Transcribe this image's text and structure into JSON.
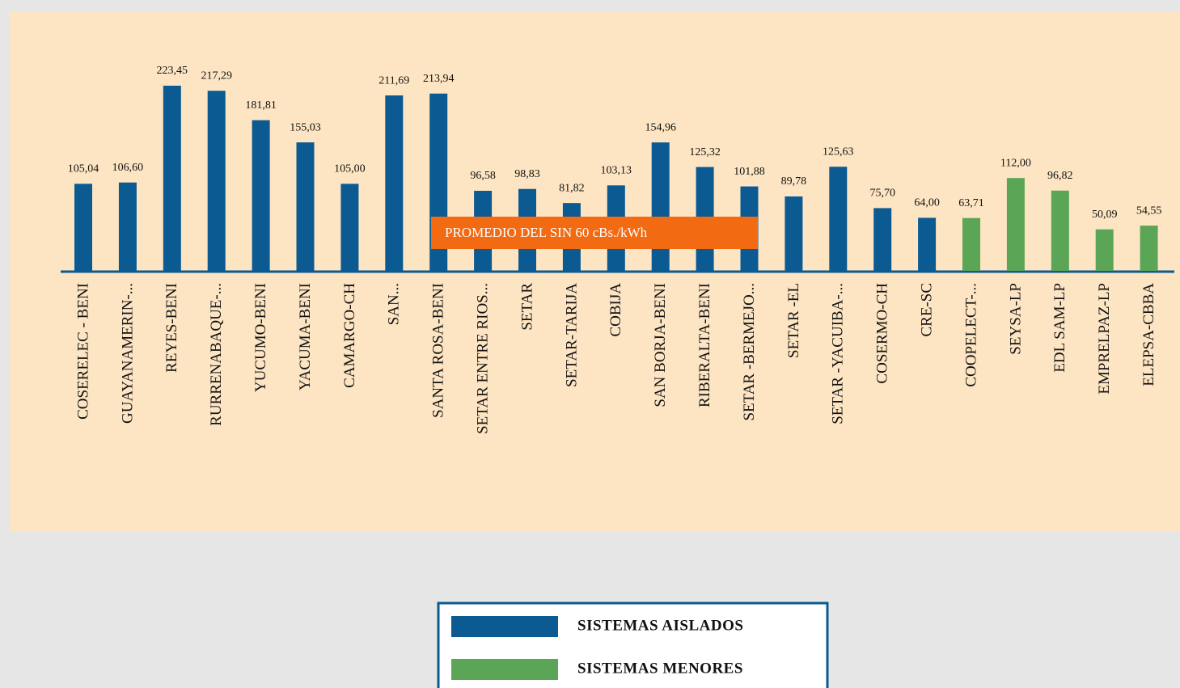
{
  "chart_data": {
    "type": "bar",
    "categories": [
      "COSERELEC - BENI",
      "GUAYANAMERIN-...",
      "REYES-BENI",
      "RURRENABAQUE-...",
      "YUCUMO-BENI",
      "YACUMA-BENI",
      "CAMARGO-CH",
      "SAN...",
      "SANTA ROSA-BENI",
      "SETAR ENTRE RIOS...",
      "SETAR",
      "SETAR-TARIJA",
      "COBIJA",
      "SAN BORJA-BENI",
      "RIBERALTA-BENI",
      "SETAR -BERMEJO...",
      "SETAR -EL",
      "SETAR -YACUIBA-...",
      "COSERMO-CH",
      "CRE-SC",
      "COOPELECT-...",
      "SEYSA-LP",
      "EDL SAM-LP",
      "EMPRELPAZ-LP",
      "ELEPSA-CBBA"
    ],
    "series": [
      {
        "name": "SISTEMAS AISLADOS",
        "color": "#0b5a92",
        "values": [
          105.04,
          106.6,
          223.45,
          217.29,
          181.81,
          155.03,
          105.0,
          211.69,
          213.94,
          96.58,
          98.83,
          81.82,
          103.13,
          154.96,
          125.32,
          101.88,
          89.78,
          125.63,
          75.7,
          64.0,
          null,
          null,
          null,
          null,
          null
        ],
        "value_labels": [
          "105,04",
          "106,60",
          "223,45",
          "217,29",
          "181,81",
          "155,03",
          "105,00",
          "211,69",
          "213,94",
          "96,58",
          "98,83",
          "81,82",
          "103,13",
          "154,96",
          "125,32",
          "101,88",
          "89,78",
          "125,63",
          "75,70",
          "64,00",
          null,
          null,
          null,
          null,
          null
        ]
      },
      {
        "name": "SISTEMAS MENORES",
        "color": "#5ba556",
        "values": [
          null,
          null,
          null,
          null,
          null,
          null,
          null,
          null,
          null,
          null,
          null,
          null,
          null,
          null,
          null,
          null,
          null,
          null,
          null,
          null,
          63.71,
          112.0,
          96.82,
          50.09,
          54.55
        ],
        "value_labels": [
          null,
          null,
          null,
          null,
          null,
          null,
          null,
          null,
          null,
          null,
          null,
          null,
          null,
          null,
          null,
          null,
          null,
          null,
          null,
          null,
          "63,71",
          "112,00",
          "96,82",
          "50,09",
          "54,55"
        ]
      }
    ],
    "annotation": "PROMEDIO DEL SIN 60 cBs./kWh"
  }
}
